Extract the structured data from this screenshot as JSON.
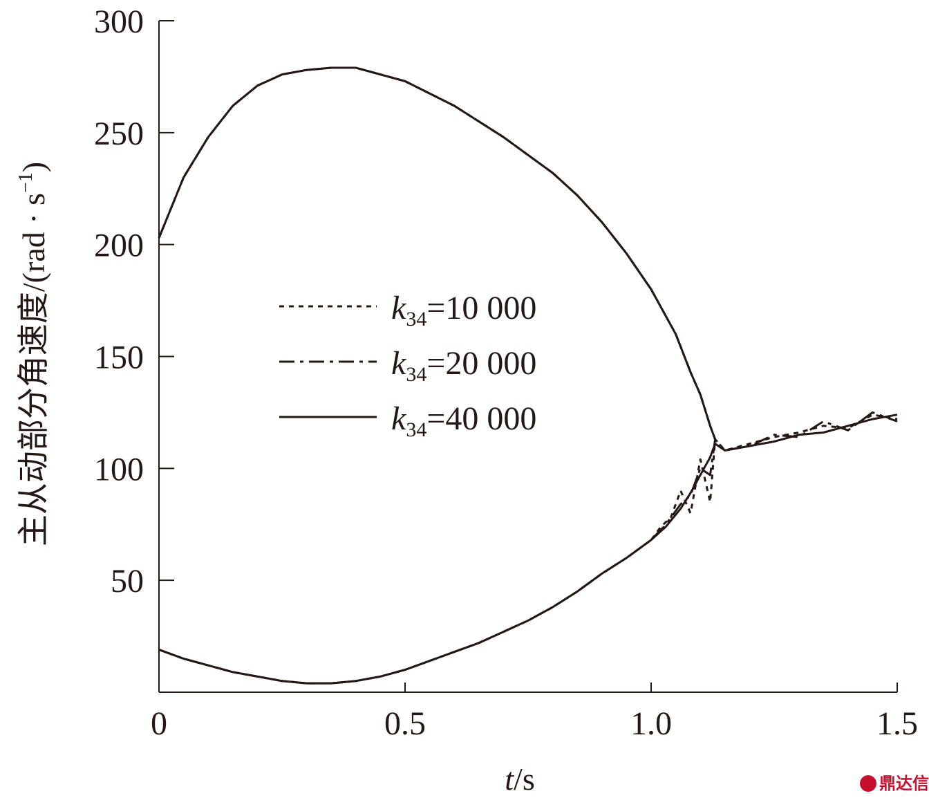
{
  "chart_data": {
    "type": "line",
    "title": "",
    "xlabel": {
      "italic": "t",
      "rest": "/s"
    },
    "ylabel": {
      "main": "主从动部分角速度/(rad · s",
      "sup": "−1",
      "close": ")"
    },
    "xlim": [
      0,
      1.5
    ],
    "ylim": [
      0,
      300
    ],
    "xticks": [
      0,
      0.5,
      1.0,
      1.5
    ],
    "xtick_labels": [
      "0",
      "0.5",
      "1.0",
      "1.5"
    ],
    "yticks": [
      50,
      100,
      150,
      200,
      250,
      300
    ],
    "ytick_labels": [
      "50",
      "100",
      "150",
      "200",
      "250",
      "300"
    ],
    "grid": false,
    "legend_position": "center-left",
    "series": [
      {
        "legend": {
          "k": "k",
          "sub": "34",
          "rest": "=10 000"
        },
        "dash": "dotted",
        "upper": {
          "x": [
            0,
            0.05,
            0.1,
            0.15,
            0.2,
            0.25,
            0.3,
            0.35,
            0.4,
            0.5,
            0.6,
            0.7,
            0.8,
            0.85,
            0.9,
            0.95,
            1.0,
            1.05,
            1.08,
            1.1,
            1.12,
            1.13
          ],
          "y": [
            203,
            230,
            248,
            262,
            271,
            276,
            278,
            279,
            279,
            273,
            262,
            248,
            232,
            222,
            210,
            196,
            180,
            160,
            143,
            133,
            119,
            113
          ]
        },
        "lower": {
          "x": [
            0,
            0.05,
            0.1,
            0.15,
            0.2,
            0.25,
            0.3,
            0.35,
            0.4,
            0.45,
            0.5,
            0.55,
            0.6,
            0.65,
            0.7,
            0.75,
            0.8,
            0.85,
            0.9,
            0.95,
            1.0,
            1.02,
            1.04,
            1.06,
            1.08,
            1.1,
            1.12,
            1.13,
            1.15,
            1.2,
            1.25,
            1.3,
            1.35,
            1.4,
            1.45,
            1.5
          ],
          "y": [
            19,
            15,
            12,
            9,
            7,
            5,
            4,
            4,
            5,
            7,
            10,
            14,
            18,
            22,
            27,
            32,
            38,
            45,
            53,
            60,
            68,
            74,
            78,
            90,
            80,
            104,
            85,
            113,
            108,
            111,
            114,
            116,
            119,
            118,
            124,
            122
          ]
        }
      },
      {
        "legend": {
          "k": "k",
          "sub": "34",
          "rest": "=20 000"
        },
        "dash": "dashdot",
        "upper": {
          "x": [
            0,
            0.05,
            0.1,
            0.15,
            0.2,
            0.25,
            0.3,
            0.35,
            0.4,
            0.5,
            0.6,
            0.7,
            0.8,
            0.85,
            0.9,
            0.95,
            1.0,
            1.05,
            1.08,
            1.1,
            1.12,
            1.13
          ],
          "y": [
            203,
            230,
            248,
            262,
            271,
            276,
            278,
            279,
            279,
            273,
            262,
            248,
            232,
            222,
            210,
            196,
            180,
            160,
            143,
            133,
            119,
            113
          ]
        },
        "lower": {
          "x": [
            0,
            0.05,
            0.1,
            0.15,
            0.2,
            0.25,
            0.3,
            0.35,
            0.4,
            0.45,
            0.5,
            0.55,
            0.6,
            0.65,
            0.7,
            0.75,
            0.8,
            0.85,
            0.9,
            0.95,
            1.0,
            1.03,
            1.06,
            1.08,
            1.1,
            1.12,
            1.13,
            1.15,
            1.2,
            1.25,
            1.3,
            1.35,
            1.4,
            1.45,
            1.5
          ],
          "y": [
            19,
            15,
            12,
            9,
            7,
            5,
            4,
            4,
            5,
            7,
            10,
            14,
            18,
            22,
            27,
            32,
            38,
            45,
            53,
            60,
            68,
            75,
            84,
            88,
            100,
            97,
            113,
            108,
            110,
            115,
            114,
            121,
            117,
            125,
            121
          ]
        }
      },
      {
        "legend": {
          "k": "k",
          "sub": "34",
          "rest": "=40 000"
        },
        "dash": "solid",
        "upper": {
          "x": [
            0,
            0.05,
            0.1,
            0.15,
            0.2,
            0.25,
            0.3,
            0.35,
            0.4,
            0.5,
            0.6,
            0.7,
            0.8,
            0.85,
            0.9,
            0.95,
            1.0,
            1.05,
            1.08,
            1.1,
            1.12,
            1.13
          ],
          "y": [
            203,
            230,
            248,
            262,
            271,
            276,
            278,
            279,
            279,
            273,
            262,
            248,
            232,
            222,
            210,
            196,
            180,
            160,
            143,
            133,
            119,
            113
          ]
        },
        "lower": {
          "x": [
            0,
            0.05,
            0.1,
            0.15,
            0.2,
            0.25,
            0.3,
            0.35,
            0.4,
            0.45,
            0.5,
            0.55,
            0.6,
            0.65,
            0.7,
            0.75,
            0.8,
            0.85,
            0.9,
            0.95,
            1.0,
            1.03,
            1.06,
            1.08,
            1.1,
            1.12,
            1.13,
            1.15,
            1.2,
            1.25,
            1.3,
            1.35,
            1.4,
            1.45,
            1.5
          ],
          "y": [
            19,
            15,
            12,
            9,
            7,
            5,
            4,
            4,
            5,
            7,
            10,
            14,
            18,
            22,
            27,
            32,
            38,
            45,
            53,
            60,
            68,
            74,
            82,
            89,
            97,
            105,
            111,
            108,
            110,
            112,
            115,
            116,
            119,
            122,
            124
          ]
        }
      }
    ]
  },
  "watermark": {
    "text": "鼎达信",
    "color": "#c8102e"
  }
}
